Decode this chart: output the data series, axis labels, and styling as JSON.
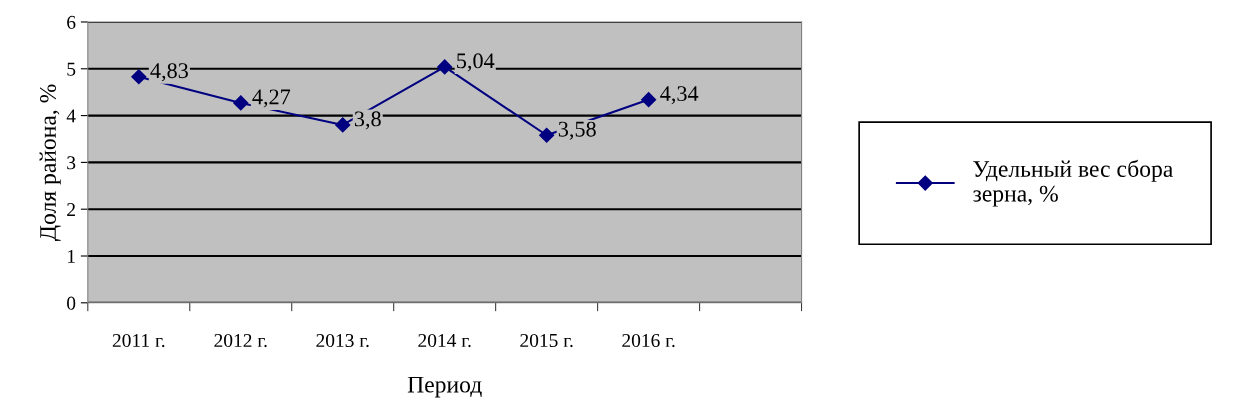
{
  "chart_data": {
    "type": "line",
    "xlabel": "Период",
    "ylabel": "Доля района, %",
    "categories": [
      "2011 г.",
      "2012 г.",
      "2013 г.",
      "2014 г.",
      "2015 г.",
      "2016 г.",
      null
    ],
    "series": [
      {
        "name": "Удельный вес сбора\nзерна, %",
        "color": "#000080",
        "values": [
          4.83,
          4.27,
          3.8,
          5.04,
          3.58,
          4.34,
          null
        ]
      }
    ],
    "value_labels": [
      "4,83",
      "4,27",
      "3,8",
      "5,04",
      "3,58",
      "4,34",
      null
    ],
    "ylim": [
      0,
      6
    ],
    "yticks": [
      0,
      1,
      2,
      3,
      4,
      5,
      6
    ],
    "grid": "y",
    "legend": "right",
    "marker": "diamond",
    "line_style": "solid"
  }
}
